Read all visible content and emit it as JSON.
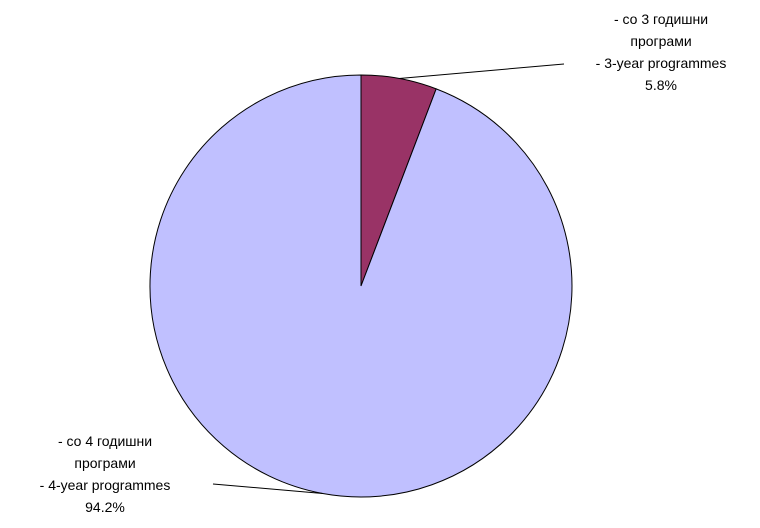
{
  "chart_data": {
    "type": "pie",
    "start_angle_deg": 0,
    "direction": "clockwise",
    "slices": [
      {
        "label_lines": [
          "- со 3 годишни",
          "програми",
          "-  3-year programmes"
        ],
        "value": 5.8,
        "value_label": "5.8%",
        "color": "#993366"
      },
      {
        "label_lines": [
          "- со 4 годишни",
          "програми",
          "-  4-year programmes"
        ],
        "value": 94.2,
        "value_label": "94.2%",
        "color": "#c0c0ff"
      }
    ],
    "legend": "none",
    "title": ""
  }
}
